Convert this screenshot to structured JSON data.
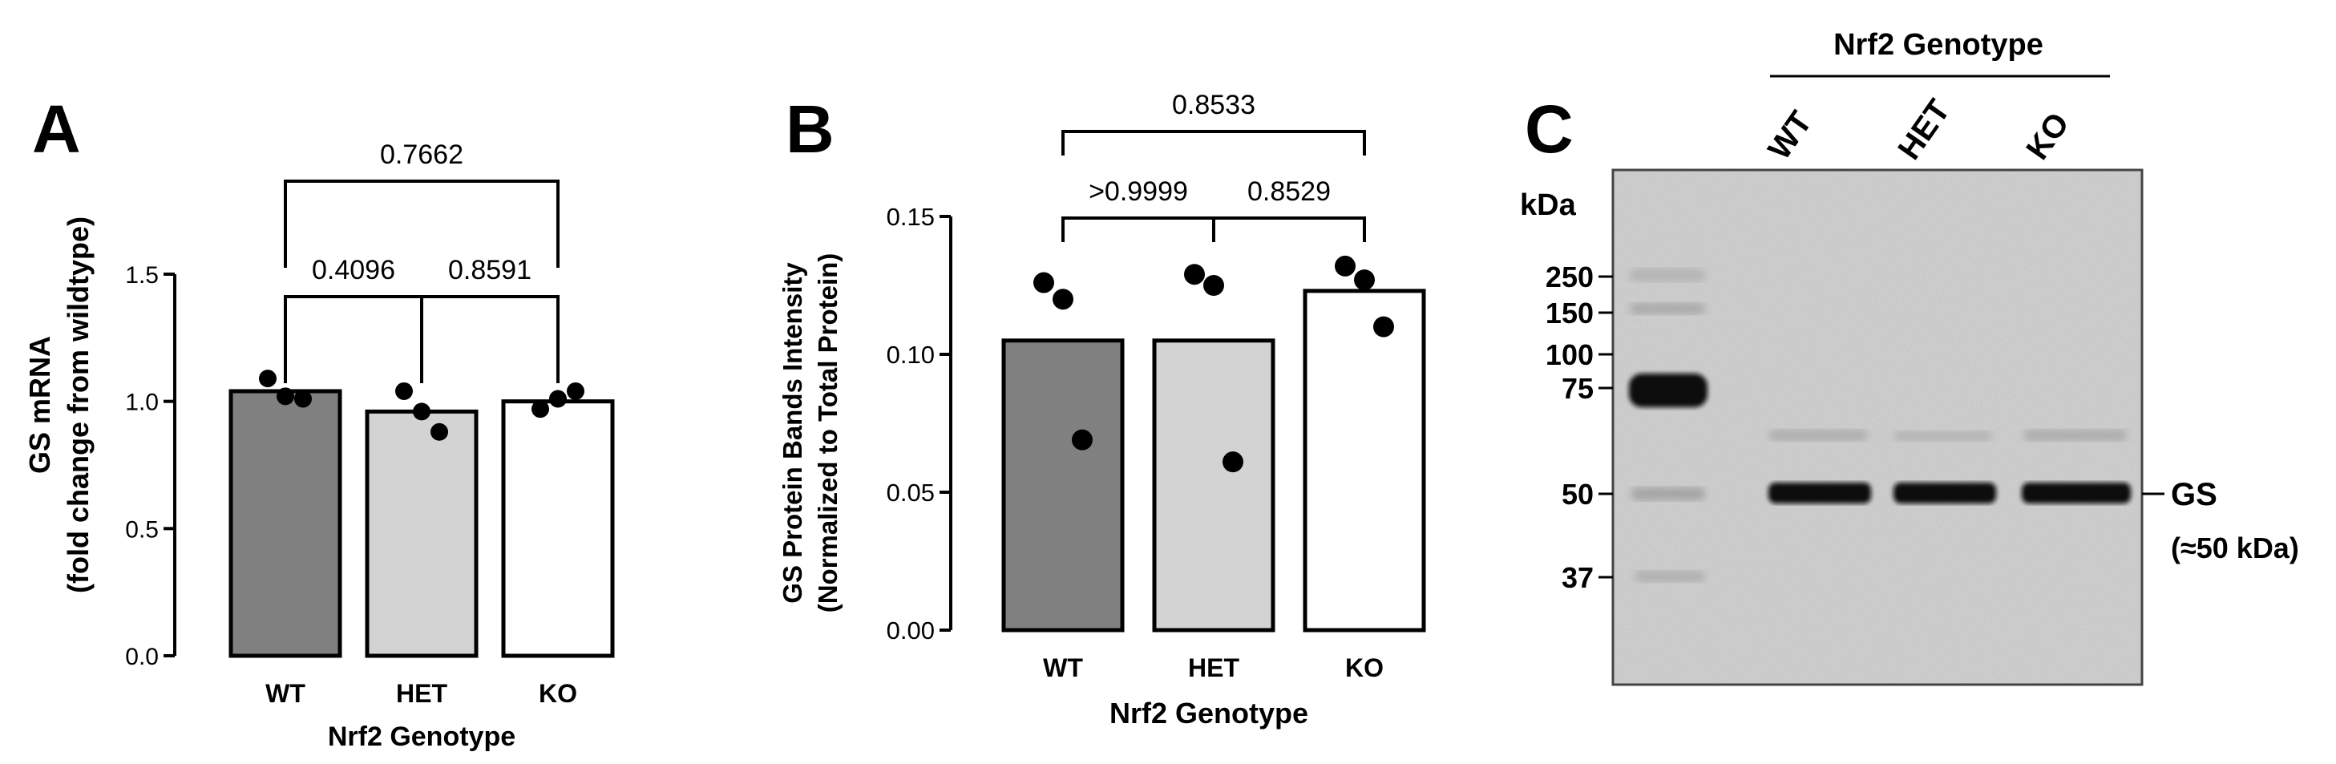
{
  "panels": {
    "a": {
      "letter": "A",
      "chart_data": {
        "type": "bar",
        "categories": [
          "WT",
          "HET",
          "KO"
        ],
        "values": [
          1.04,
          0.96,
          1.0
        ],
        "points": [
          [
            1.09,
            1.02,
            1.01
          ],
          [
            1.04,
            0.96,
            0.88
          ],
          [
            0.97,
            1.01,
            1.04
          ]
        ],
        "bar_colors": [
          "#808080",
          "#d3d3d3",
          "#ffffff"
        ],
        "ylim": [
          0,
          1.5
        ],
        "yticks": [
          0.0,
          0.5,
          1.0,
          1.5
        ],
        "ytick_labels": [
          "0.0",
          "0.5",
          "1.0",
          "1.5"
        ],
        "ylabel_line1": "GS mRNA",
        "ylabel_line2": "(fold change from wildtype)",
        "xlabel": "Nrf2 Genotype",
        "comparisons": [
          {
            "from": 0,
            "to": 1,
            "label": "0.4096",
            "level": 0
          },
          {
            "from": 1,
            "to": 2,
            "label": "0.8591",
            "level": 0
          },
          {
            "from": 0,
            "to": 2,
            "label": "0.7662",
            "level": 1
          }
        ]
      }
    },
    "b": {
      "letter": "B",
      "chart_data": {
        "type": "bar",
        "categories": [
          "WT",
          "HET",
          "KO"
        ],
        "values": [
          0.105,
          0.105,
          0.123
        ],
        "points": [
          [
            0.126,
            0.12,
            0.069
          ],
          [
            0.129,
            0.125,
            0.061
          ],
          [
            0.132,
            0.127,
            0.11
          ]
        ],
        "bar_colors": [
          "#808080",
          "#d3d3d3",
          "#ffffff"
        ],
        "ylim": [
          0,
          0.15
        ],
        "yticks": [
          0.0,
          0.05,
          0.1,
          0.15
        ],
        "ytick_labels": [
          "0.00",
          "0.05",
          "0.10",
          "0.15"
        ],
        "ylabel_line1": "GS Protein Bands Intensity",
        "ylabel_line2": "(Normalized to Total Protein)",
        "xlabel": "Nrf2 Genotype",
        "comparisons": [
          {
            "from": 0,
            "to": 1,
            "label": ">0.9999",
            "level": 0
          },
          {
            "from": 1,
            "to": 2,
            "label": "0.8529",
            "level": 0
          },
          {
            "from": 0,
            "to": 2,
            "label": "0.8533",
            "level": 1
          }
        ]
      }
    },
    "c": {
      "letter": "C",
      "header": "Nrf2 Genotype",
      "lanes": [
        "WT",
        "HET",
        "KO"
      ],
      "kda_label": "kDa",
      "markers": [
        {
          "label": "250",
          "kda": 250
        },
        {
          "label": "150",
          "kda": 150
        },
        {
          "label": "100",
          "kda": 100
        },
        {
          "label": "75",
          "kda": 75
        },
        {
          "label": "50",
          "kda": 50
        },
        {
          "label": "37",
          "kda": 37
        }
      ],
      "band_label": "GS",
      "band_note": "(≈50 kDa)"
    }
  }
}
